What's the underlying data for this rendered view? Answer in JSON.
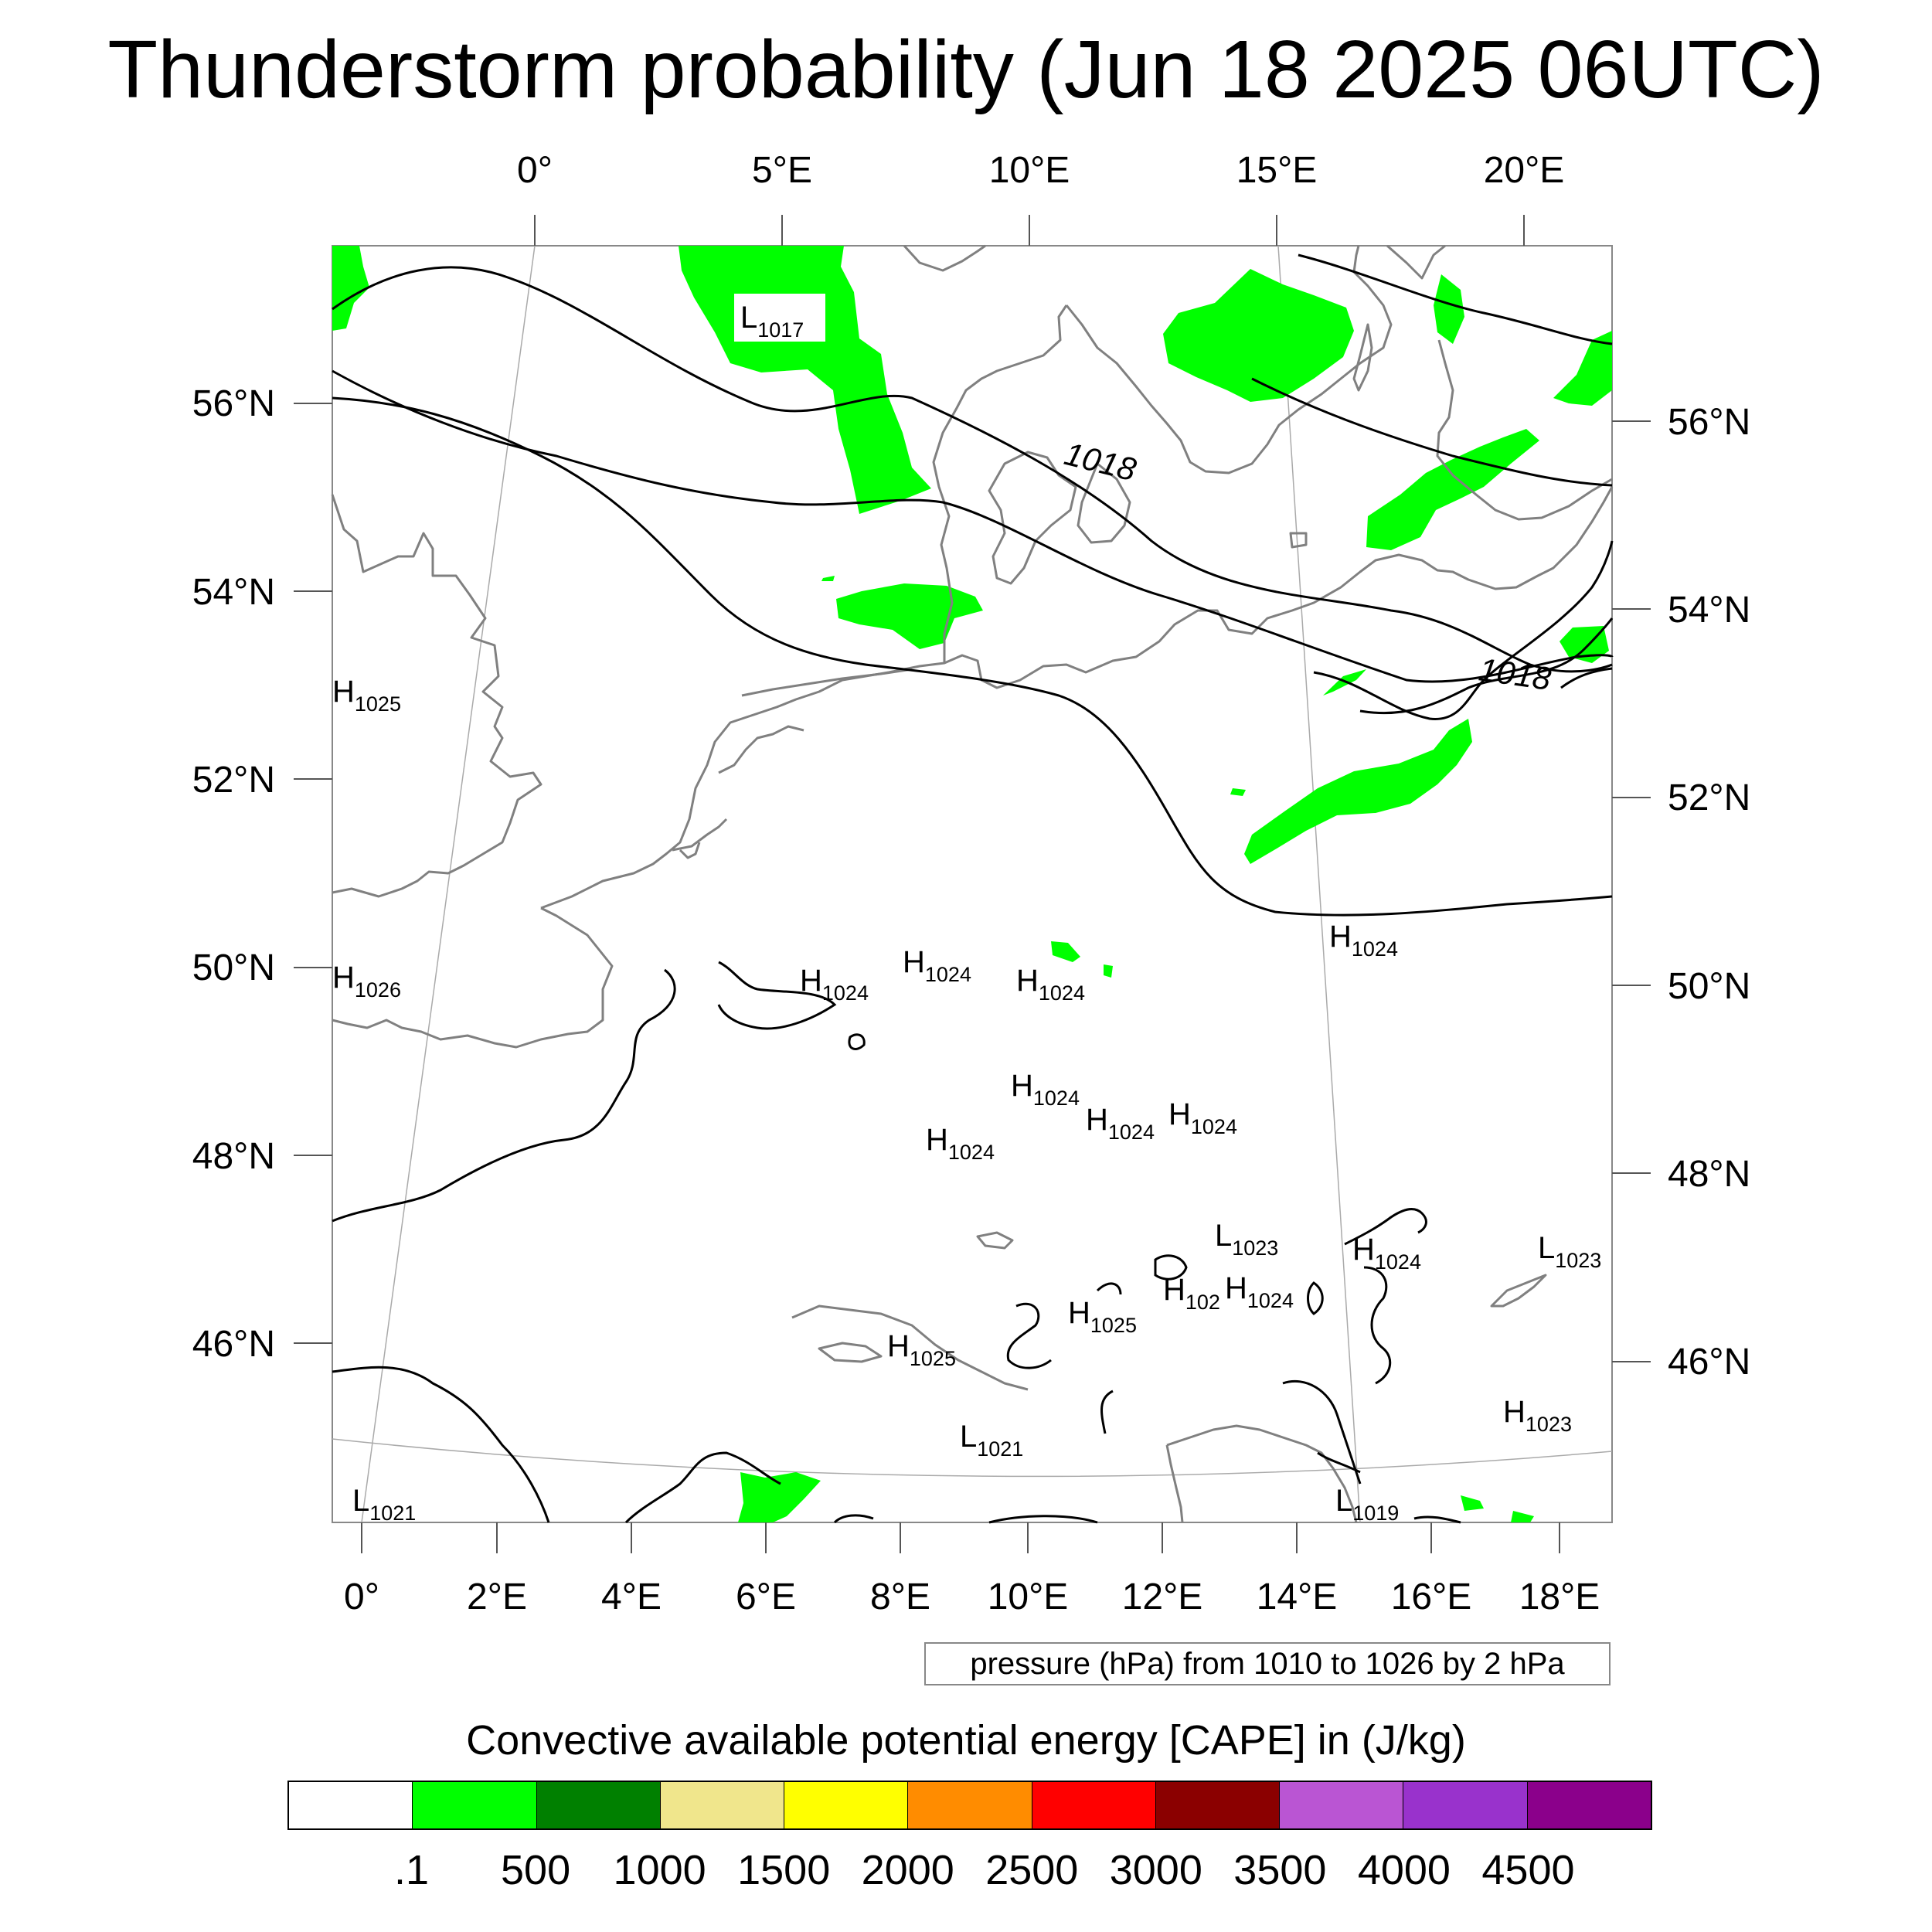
{
  "title": "Thunderstorm probability (Jun 18 2025 06UTC)",
  "axes": {
    "top_lon": [
      "0°",
      "5°E",
      "10°E",
      "15°E",
      "20°E"
    ],
    "bottom_lon": [
      "0°",
      "2°E",
      "4°E",
      "6°E",
      "8°E",
      "10°E",
      "12°E",
      "14°E",
      "16°E",
      "18°E"
    ],
    "left_lat": [
      "56°N",
      "54°N",
      "52°N",
      "50°N",
      "48°N",
      "46°N"
    ],
    "right_lat": [
      "56°N",
      "54°N",
      "52°N",
      "50°N",
      "48°N",
      "46°N"
    ]
  },
  "isobar_labels": [
    "1018",
    "1018"
  ],
  "pressure_centers": [
    {
      "type": "L",
      "value": "1017"
    },
    {
      "type": "H",
      "value": "1025"
    },
    {
      "type": "H",
      "value": "1026"
    },
    {
      "type": "H",
      "value": "1024"
    },
    {
      "type": "H",
      "value": "1024"
    },
    {
      "type": "H",
      "value": "1024"
    },
    {
      "type": "H",
      "value": "1024"
    },
    {
      "type": "H",
      "value": "1024"
    },
    {
      "type": "H",
      "value": "1024"
    },
    {
      "type": "H",
      "value": "1024"
    },
    {
      "type": "H",
      "value": "1024"
    },
    {
      "type": "L",
      "value": "1023"
    },
    {
      "type": "H",
      "value": "1024"
    },
    {
      "type": "L",
      "value": "1023"
    },
    {
      "type": "H",
      "value": "102"
    },
    {
      "type": "H",
      "value": "1024"
    },
    {
      "type": "H",
      "value": "1025"
    },
    {
      "type": "H",
      "value": "1025"
    },
    {
      "type": "L",
      "value": "1021"
    },
    {
      "type": "H",
      "value": "1023"
    },
    {
      "type": "L",
      "value": "1021"
    },
    {
      "type": "L",
      "value": "1019"
    }
  ],
  "contour_note": "pressure (hPa) from 1010 to 1026 by 2 hPa",
  "colorbar": {
    "title": "Convective available potential energy [CAPE] in (J/kg)",
    "colors": [
      "#ffffff",
      "#00ff00",
      "#008000",
      "#f0e68c",
      "#ffff00",
      "#ff8c00",
      "#ff0000",
      "#8b0000",
      "#ba55d3",
      "#9932cc",
      "#8b008b"
    ],
    "labels": [
      ".1",
      "500",
      "1000",
      "1500",
      "2000",
      "2500",
      "3000",
      "3500",
      "4000",
      "4500"
    ]
  },
  "colors": {
    "cape_low": "#00ff00",
    "isobar": "#000000",
    "coastline": "#808080"
  }
}
